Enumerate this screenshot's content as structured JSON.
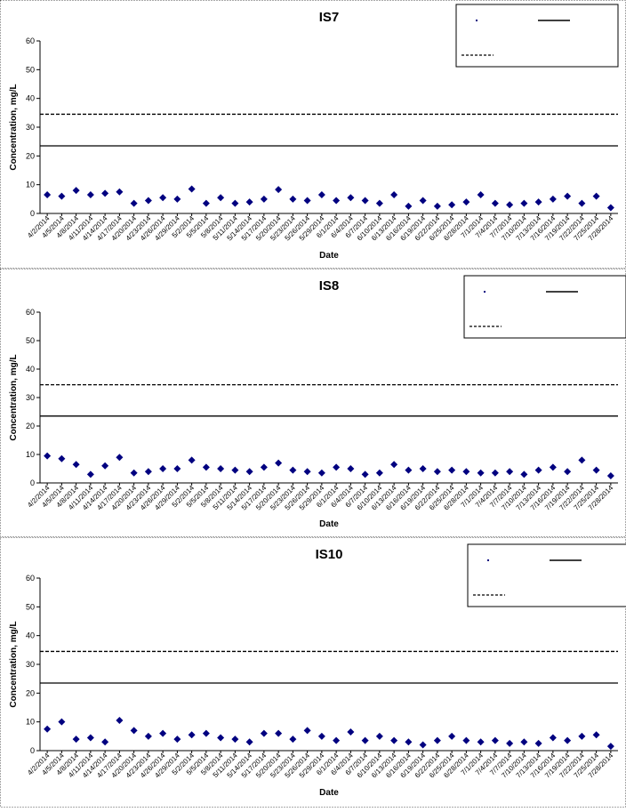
{
  "chart_data": [
    {
      "type": "scatter",
      "title": "IS7",
      "x_label": "Date",
      "y_label": "Concentration, mg/L",
      "categories": [
        "4/2/2014",
        "4/5/2014",
        "4/8/2014",
        "4/11/2014",
        "4/14/2014",
        "4/17/2014",
        "4/20/2014",
        "4/23/2014",
        "4/26/2014",
        "4/29/2014",
        "5/2/2014",
        "5/5/2014",
        "5/8/2014",
        "5/11/2014",
        "5/14/2014",
        "5/17/2014",
        "5/20/2014",
        "5/23/2014",
        "5/26/2014",
        "5/29/2014",
        "6/1/2014",
        "6/4/2014",
        "6/7/2014",
        "6/10/2014",
        "6/13/2014",
        "6/16/2014",
        "6/19/2014",
        "6/22/2014",
        "6/25/2014",
        "6/28/2014",
        "7/1/2014",
        "7/4/2014",
        "7/7/2014",
        "7/10/2014",
        "7/13/2014",
        "7/16/2014",
        "7/19/2014",
        "7/22/2014",
        "7/25/2014",
        "7/28/2014"
      ],
      "series": [
        {
          "color": "#000080",
          "values": [
            6.5,
            6,
            8,
            6.5,
            7,
            7.5,
            3.5,
            4.5,
            5.5,
            5,
            8.5,
            3.5,
            5.5,
            3.5,
            4,
            5,
            8.3,
            5,
            4.5,
            6.5,
            4.5,
            5.5,
            4.5,
            3.5,
            6.5,
            2.5,
            4.5,
            2.5,
            3,
            4,
            6.5,
            3.5,
            3,
            3.5,
            4,
            5,
            6,
            3.5,
            6,
            2
          ]
        }
      ],
      "reference_lines": [
        {
          "value": 23.5,
          "style": "solid"
        },
        {
          "value": 34.5,
          "style": "dashed"
        }
      ],
      "ylim": [
        0,
        60
      ],
      "yticks": [
        0,
        10,
        20,
        30,
        40,
        50,
        60
      ]
    },
    {
      "type": "scatter",
      "title": "IS8",
      "x_label": "Date",
      "y_label": "Concentration, mg/L",
      "categories": [
        "4/2/2014",
        "4/5/2014",
        "4/8/2014",
        "4/11/2014",
        "4/14/2014",
        "4/17/2014",
        "4/20/2014",
        "4/23/2014",
        "4/26/2014",
        "4/29/2014",
        "5/2/2014",
        "5/5/2014",
        "5/8/2014",
        "5/11/2014",
        "5/14/2014",
        "5/17/2014",
        "5/20/2014",
        "5/23/2014",
        "5/26/2014",
        "5/29/2014",
        "6/1/2014",
        "6/4/2014",
        "6/7/2014",
        "6/10/2014",
        "6/13/2014",
        "6/16/2014",
        "6/19/2014",
        "6/22/2014",
        "6/25/2014",
        "6/28/2014",
        "7/1/2014",
        "7/4/2014",
        "7/7/2014",
        "7/10/2014",
        "7/13/2014",
        "7/16/2014",
        "7/19/2014",
        "7/22/2014",
        "7/25/2014",
        "7/28/2014"
      ],
      "series": [
        {
          "color": "#000080",
          "values": [
            9.5,
            8.5,
            6.5,
            3,
            6,
            9,
            3.5,
            4,
            5,
            5,
            8,
            5.5,
            5,
            4.5,
            4,
            5.5,
            7,
            4.5,
            4,
            3.5,
            5.5,
            5,
            3,
            3.5,
            6.5,
            4.5,
            5,
            4,
            4.5,
            4,
            3.5,
            3.5,
            4,
            3,
            4.5,
            5.5,
            4,
            8,
            4.5,
            2.5
          ]
        }
      ],
      "reference_lines": [
        {
          "value": 23.5,
          "style": "solid"
        },
        {
          "value": 34.5,
          "style": "dashed"
        }
      ],
      "ylim": [
        0,
        60
      ],
      "yticks": [
        0,
        10,
        20,
        30,
        40,
        50,
        60
      ]
    },
    {
      "type": "scatter",
      "title": "IS10",
      "x_label": "Date",
      "y_label": "Concentration, mg/L",
      "categories": [
        "4/2/2014",
        "4/5/2014",
        "4/8/2014",
        "4/11/2014",
        "4/14/2014",
        "4/17/2014",
        "4/20/2014",
        "4/23/2014",
        "4/26/2014",
        "4/29/2014",
        "5/2/2014",
        "5/5/2014",
        "5/8/2014",
        "5/11/2014",
        "5/14/2014",
        "5/17/2014",
        "5/20/2014",
        "5/23/2014",
        "5/26/2014",
        "5/29/2014",
        "6/1/2014",
        "6/4/2014",
        "6/7/2014",
        "6/10/2014",
        "6/13/2014",
        "6/16/2014",
        "6/19/2014",
        "6/22/2014",
        "6/25/2014",
        "6/28/2014",
        "7/1/2014",
        "7/4/2014",
        "7/7/2014",
        "7/10/2014",
        "7/13/2014",
        "7/16/2014",
        "7/19/2014",
        "7/22/2014",
        "7/25/2014",
        "7/28/2014"
      ],
      "series": [
        {
          "color": "#000080",
          "values": [
            7.5,
            10,
            4,
            4.5,
            3,
            10.5,
            7,
            5,
            6,
            4,
            5.5,
            6,
            4.5,
            4,
            3,
            6,
            6,
            4,
            7,
            5,
            3.5,
            6.5,
            3.5,
            5,
            3.5,
            3,
            2,
            3.5,
            5,
            3.5,
            3,
            3.5,
            2.5,
            3,
            2.5,
            4.5,
            3.5,
            5,
            5.5,
            1.5
          ]
        }
      ],
      "reference_lines": [
        {
          "value": 23.5,
          "style": "solid"
        },
        {
          "value": 34.5,
          "style": "dashed"
        }
      ],
      "ylim": [
        0,
        60
      ],
      "yticks": [
        0,
        10,
        20,
        30,
        40,
        50,
        60
      ]
    }
  ]
}
